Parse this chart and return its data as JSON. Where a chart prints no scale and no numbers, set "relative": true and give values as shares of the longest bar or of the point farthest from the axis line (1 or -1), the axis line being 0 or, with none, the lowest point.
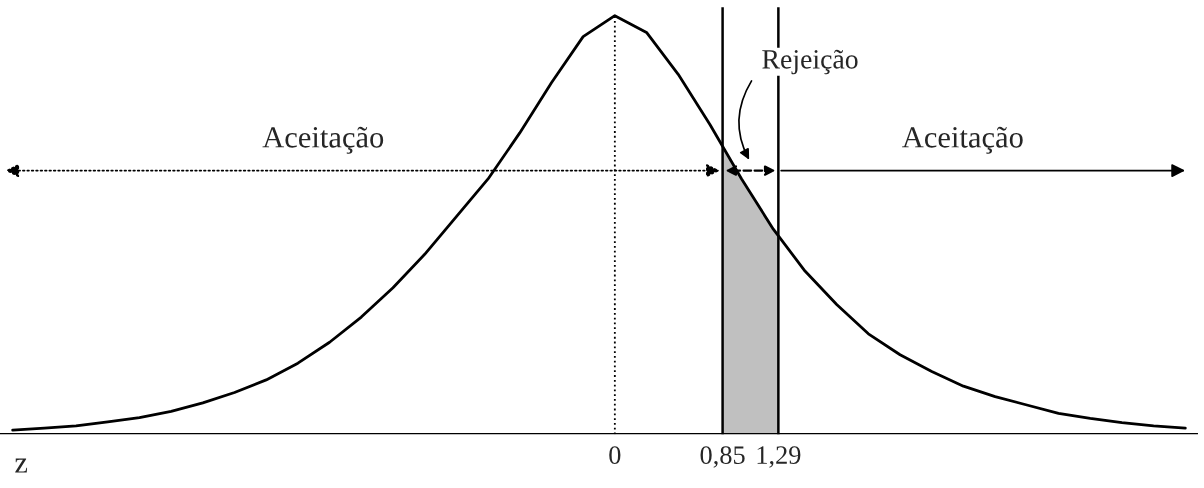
{
  "chart_data": {
    "type": "line",
    "relative": true,
    "xlabel": "z",
    "x": [
      -4.75,
      -4.5,
      -4.25,
      -4,
      -3.75,
      -3.5,
      -3.25,
      -3,
      -2.75,
      -2.5,
      -2.25,
      -2,
      -1.75,
      -1.5,
      -1.25,
      -1,
      -0.75,
      -0.5,
      -0.25,
      0,
      0.25,
      0.5,
      0.75,
      1,
      1.25,
      1.5,
      1.75,
      2,
      2.25,
      2.5,
      2.75,
      3,
      3.25,
      3.5,
      3.75,
      4,
      4.25,
      4.5
    ],
    "series": [
      {
        "color": "#000000",
        "values": [
          0.01,
          0.015,
          0.02,
          0.03,
          0.04,
          0.055,
          0.075,
          0.1,
          0.13,
          0.17,
          0.22,
          0.28,
          0.35,
          0.43,
          0.52,
          0.61,
          0.72,
          0.84,
          0.95,
          1,
          0.96,
          0.86,
          0.74,
          0.61,
          0.49,
          0.39,
          0.31,
          0.24,
          0.19,
          0.15,
          0.115,
          0.09,
          0.07,
          0.05,
          0.038,
          0.028,
          0.02,
          0.015
        ]
      }
    ],
    "xlim": [
      -4.85,
      4.6
    ],
    "xticks": [
      0,
      {
        "value": 0.85,
        "label": "0,85"
      },
      {
        "value": 1.29,
        "label": "1,29"
      }
    ],
    "ref_lines": [
      {
        "axis": "x",
        "value": 0,
        "line_style": "dotted"
      },
      {
        "axis": "x",
        "value": 0.85,
        "line_style": "solid"
      },
      {
        "axis": "x",
        "value": 1.29,
        "line_style": "solid"
      }
    ],
    "bands": [
      {
        "axis": "x",
        "from": 0.85,
        "to": 1.29,
        "color": "#c0c0c0"
      }
    ],
    "annotations": [
      "Aceitação",
      "Rejeição",
      "Aceitação"
    ],
    "grid": false,
    "marker": "none",
    "line_style": "solid"
  }
}
